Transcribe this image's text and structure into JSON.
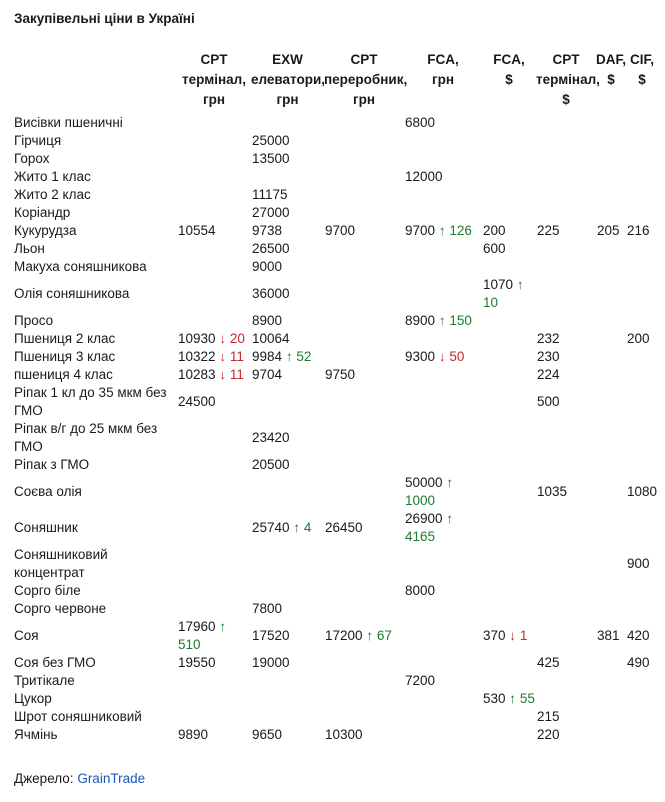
{
  "title": "Закупівельні ціни в Україні",
  "columns": [
    [
      "CPT",
      "термінал,",
      "грн"
    ],
    [
      "EXW",
      "елеватори,",
      "грн"
    ],
    [
      "CPT",
      "переробник,",
      "грн"
    ],
    [
      "FCA,",
      "грн"
    ],
    [
      "FCA,",
      "$"
    ],
    [
      "CPT",
      "термінал,",
      "$"
    ],
    [
      "DAF,",
      "$"
    ],
    [
      "CIF,",
      "$"
    ]
  ],
  "rows": [
    {
      "name": "Висівки пшеничні",
      "cells": [
        null,
        null,
        null,
        {
          "v": "6800"
        },
        null,
        null,
        null,
        null
      ]
    },
    {
      "name": "Гірчиця",
      "cells": [
        null,
        {
          "v": "25000"
        },
        null,
        null,
        null,
        null,
        null,
        null
      ]
    },
    {
      "name": "Горох",
      "cells": [
        null,
        {
          "v": "13500"
        },
        null,
        null,
        null,
        null,
        null,
        null
      ]
    },
    {
      "name": "Жито 1 клас",
      "cells": [
        null,
        null,
        null,
        {
          "v": "12000"
        },
        null,
        null,
        null,
        null
      ]
    },
    {
      "name": "Жито 2 клас",
      "cells": [
        null,
        {
          "v": "11175"
        },
        null,
        null,
        null,
        null,
        null,
        null
      ]
    },
    {
      "name": "Коріандр",
      "cells": [
        null,
        {
          "v": "27000"
        },
        null,
        null,
        null,
        null,
        null,
        null
      ]
    },
    {
      "name": "Кукурудза",
      "cells": [
        {
          "v": "10554"
        },
        {
          "v": "9738"
        },
        {
          "v": "9700"
        },
        {
          "v": "9700",
          "dir": "up",
          "d": "126"
        },
        {
          "v": "200"
        },
        {
          "v": "225"
        },
        {
          "v": "205"
        },
        {
          "v": "216"
        }
      ]
    },
    {
      "name": "Льон",
      "cells": [
        null,
        {
          "v": "26500"
        },
        null,
        null,
        {
          "v": "600"
        },
        null,
        null,
        null
      ]
    },
    {
      "name": "Макуха соняшникова",
      "cells": [
        null,
        {
          "v": "9000"
        },
        null,
        null,
        null,
        null,
        null,
        null
      ]
    },
    {
      "name": "Олія соняшникова",
      "cells": [
        null,
        {
          "v": "36000"
        },
        null,
        null,
        {
          "v": "1070",
          "dir": "up",
          "d": "10"
        },
        null,
        null,
        null
      ]
    },
    {
      "name": "Просо",
      "cells": [
        null,
        {
          "v": "8900"
        },
        null,
        {
          "v": "8900",
          "dir": "up",
          "d": "150"
        },
        null,
        null,
        null,
        null
      ]
    },
    {
      "name": "Пшениця 2 клас",
      "cells": [
        {
          "v": "10930",
          "dir": "down",
          "d": "20"
        },
        {
          "v": "10064"
        },
        null,
        null,
        null,
        {
          "v": "232"
        },
        null,
        {
          "v": "200"
        }
      ]
    },
    {
      "name": "Пшениця 3 клас",
      "cells": [
        {
          "v": "10322",
          "dir": "down",
          "d": "11"
        },
        {
          "v": "9984",
          "dir": "up",
          "d": "52"
        },
        null,
        {
          "v": "9300",
          "dir": "down",
          "d": "50"
        },
        null,
        {
          "v": "230"
        },
        null,
        null
      ]
    },
    {
      "name": "пшениця 4 клас",
      "cells": [
        {
          "v": "10283",
          "dir": "down",
          "d": "11"
        },
        {
          "v": "9704"
        },
        {
          "v": "9750"
        },
        null,
        null,
        {
          "v": "224"
        },
        null,
        null
      ]
    },
    {
      "name": "Ріпак 1 кл до 35 мкм без ГМО",
      "cells": [
        {
          "v": "24500"
        },
        null,
        null,
        null,
        null,
        {
          "v": "500"
        },
        null,
        null
      ]
    },
    {
      "name": "Ріпак в/г до 25 мкм без ГМО",
      "cells": [
        null,
        {
          "v": "23420"
        },
        null,
        null,
        null,
        null,
        null,
        null
      ]
    },
    {
      "name": "Ріпак з ГМО",
      "cells": [
        null,
        {
          "v": "20500"
        },
        null,
        null,
        null,
        null,
        null,
        null
      ]
    },
    {
      "name": "Соєва олія",
      "cells": [
        null,
        null,
        null,
        {
          "v": "50000",
          "dir": "up",
          "d": "1000"
        },
        null,
        {
          "v": "1035"
        },
        null,
        {
          "v": "1080"
        }
      ]
    },
    {
      "name": "Соняшник",
      "cells": [
        null,
        {
          "v": "25740",
          "dir": "up",
          "d": "4"
        },
        {
          "v": "26450"
        },
        {
          "v": "26900",
          "dir": "up",
          "d": "4165"
        },
        null,
        null,
        null,
        null
      ]
    },
    {
      "name": "Соняшниковий концентрат",
      "cells": [
        null,
        null,
        null,
        null,
        null,
        null,
        null,
        {
          "v": "900"
        }
      ]
    },
    {
      "name": "Сорго біле",
      "cells": [
        null,
        null,
        null,
        {
          "v": "8000"
        },
        null,
        null,
        null,
        null
      ]
    },
    {
      "name": "Сорго червоне",
      "cells": [
        null,
        {
          "v": "7800"
        },
        null,
        null,
        null,
        null,
        null,
        null
      ]
    },
    {
      "name": "Соя",
      "cells": [
        {
          "v": "17960",
          "dir": "up",
          "d": "510"
        },
        {
          "v": "17520"
        },
        {
          "v": "17200",
          "dir": "up",
          "d": "67"
        },
        null,
        {
          "v": "370",
          "dir": "down",
          "d": "1"
        },
        null,
        {
          "v": "381"
        },
        {
          "v": "420"
        }
      ]
    },
    {
      "name": "Соя без ГМО",
      "cells": [
        {
          "v": "19550"
        },
        {
          "v": "19000"
        },
        null,
        null,
        null,
        {
          "v": "425"
        },
        null,
        {
          "v": "490"
        }
      ]
    },
    {
      "name": "Тритікале",
      "cells": [
        null,
        null,
        null,
        {
          "v": "7200"
        },
        null,
        null,
        null,
        null
      ]
    },
    {
      "name": "Цукор",
      "cells": [
        null,
        null,
        null,
        null,
        {
          "v": "530",
          "dir": "up",
          "d": "55"
        },
        null,
        null,
        null
      ]
    },
    {
      "name": "Шрот соняшниковий",
      "cells": [
        null,
        null,
        null,
        null,
        null,
        {
          "v": "215"
        },
        null,
        null
      ]
    },
    {
      "name": "Ячмінь",
      "cells": [
        {
          "v": "9890"
        },
        {
          "v": "9650"
        },
        {
          "v": "10300"
        },
        null,
        null,
        {
          "v": "220"
        },
        null,
        null
      ]
    }
  ],
  "arrows": {
    "up": "↑",
    "down": "↓"
  },
  "source": {
    "label": "Джерело:",
    "link": "GrainTrade"
  },
  "colors": {
    "up": "#1e7a2e",
    "down": "#c62828",
    "link": "#1a56b8"
  }
}
